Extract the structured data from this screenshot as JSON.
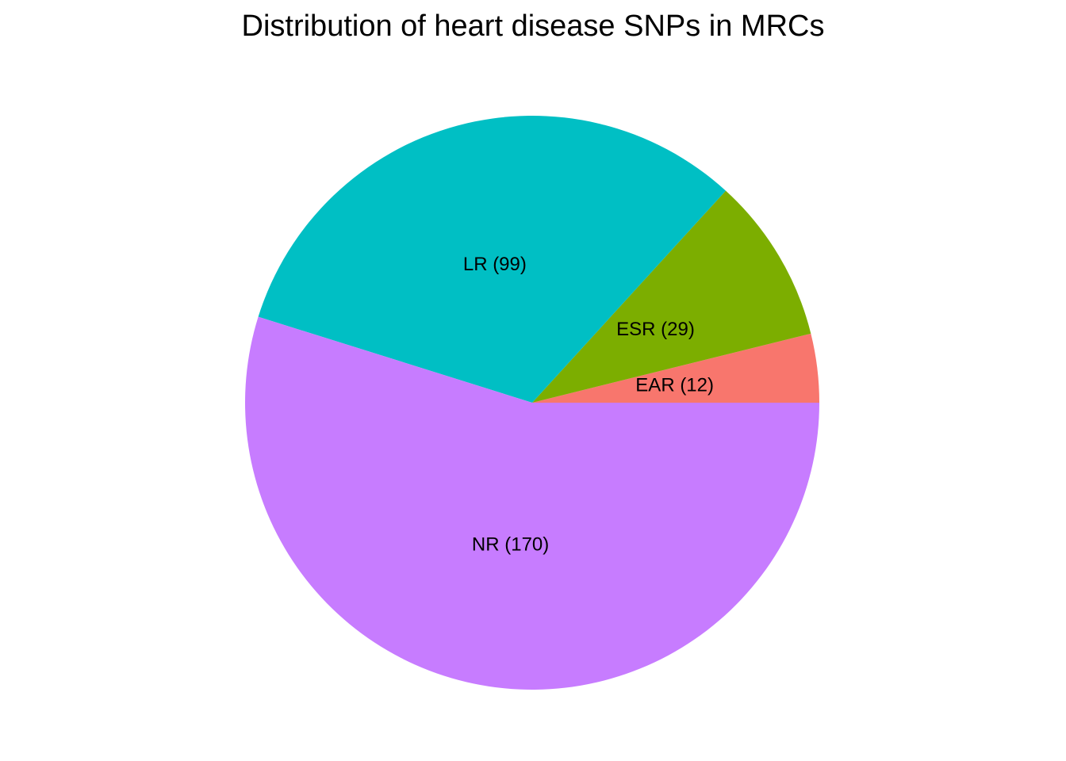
{
  "chart_data": {
    "type": "pie",
    "title": "Distribution of heart disease SNPs in MRCs",
    "slices": [
      {
        "category": "EAR",
        "value": 12,
        "label": "EAR (12)",
        "color": "#F8766D"
      },
      {
        "category": "ESR",
        "value": 29,
        "label": "ESR (29)",
        "color": "#7CAE00"
      },
      {
        "category": "LR",
        "value": 99,
        "label": "LR (99)",
        "color": "#00BFC4"
      },
      {
        "category": "NR",
        "value": 170,
        "label": "NR (170)",
        "color": "#C77CFF"
      }
    ],
    "start_angle": "3-o'clock",
    "direction": "counterclockwise",
    "legend": "none"
  }
}
